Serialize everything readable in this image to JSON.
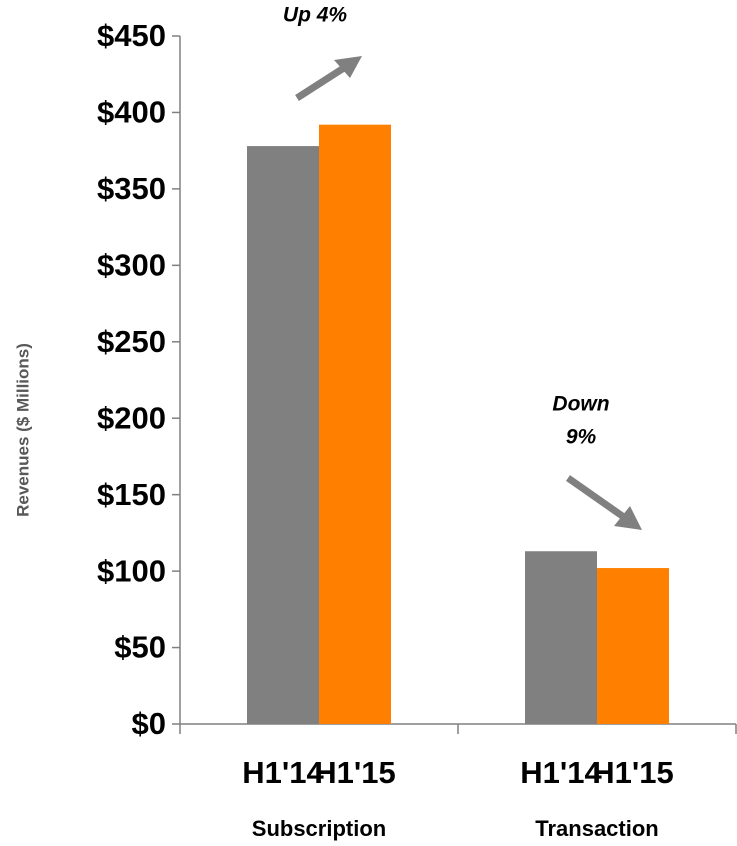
{
  "chart_data": {
    "type": "bar",
    "y_label": "Revenues ($ Millions)",
    "categories": [
      "Subscription",
      "Transaction"
    ],
    "series": [
      {
        "name": "H1'14",
        "color": "#808080",
        "values": [
          378,
          113
        ]
      },
      {
        "name": "H1'15",
        "color": "#ff8000",
        "values": [
          392,
          102
        ]
      }
    ],
    "ylim": [
      0,
      450
    ],
    "yticks": [
      {
        "value": 0,
        "label": "$0"
      },
      {
        "value": 50,
        "label": "$50"
      },
      {
        "value": 100,
        "label": "$100"
      },
      {
        "value": 150,
        "label": "$150"
      },
      {
        "value": 200,
        "label": "$200"
      },
      {
        "value": 250,
        "label": "$250"
      },
      {
        "value": 300,
        "label": "$300"
      },
      {
        "value": 350,
        "label": "$350"
      },
      {
        "value": 400,
        "label": "$400"
      },
      {
        "value": 450,
        "label": "$450"
      }
    ],
    "annotations": [
      {
        "lines": [
          "Up 4%"
        ]
      },
      {
        "lines": [
          "Down",
          "9%"
        ]
      }
    ]
  }
}
